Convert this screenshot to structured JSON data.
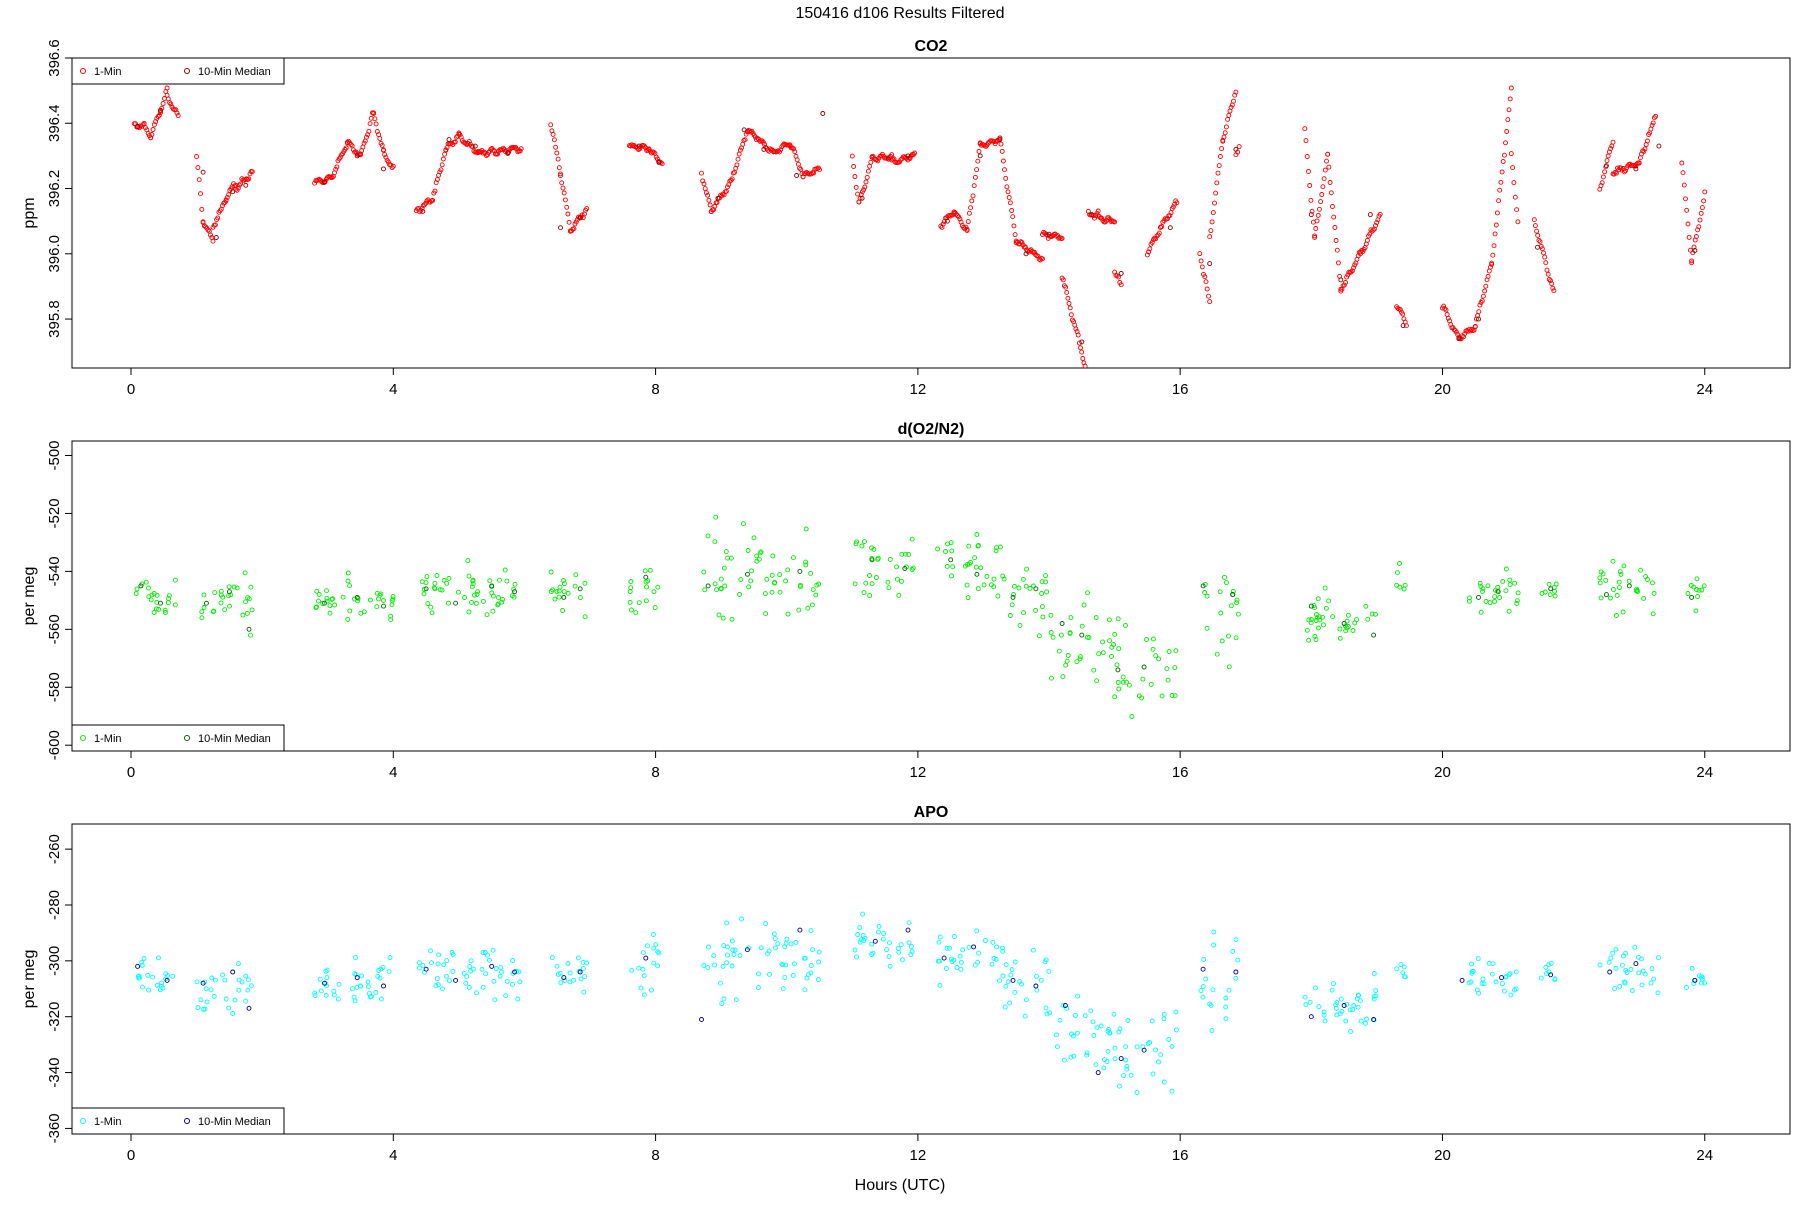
{
  "title": "150416   d106   Results Filtered",
  "xlabel": "Hours (UTC)",
  "chart_data": [
    {
      "type": "scatter",
      "title": "CO2",
      "ylabel": "ppm",
      "xlim": [
        -0.9,
        25.3
      ],
      "ylim": [
        395.65,
        396.6
      ],
      "xticks": [
        0,
        4,
        8,
        12,
        16,
        20,
        24
      ],
      "yticks": [
        395.8,
        396.0,
        396.2,
        396.4,
        396.6
      ],
      "ytick_labels": [
        "395.8",
        "396.0",
        "396.2",
        "396.4",
        "396.6"
      ],
      "legend": {
        "position": "top-left",
        "entries": [
          "1-Min",
          "10-Min Median"
        ]
      },
      "colors": {
        "one_min": "#ff0000",
        "median": "#8b0000"
      },
      "segments": [
        [
          0.05,
          0.2,
          396.39,
          396.39
        ],
        [
          0.2,
          0.3,
          396.39,
          396.36
        ],
        [
          0.3,
          0.45,
          396.36,
          396.44
        ],
        [
          0.45,
          0.55,
          396.44,
          396.5
        ],
        [
          0.55,
          0.72,
          396.48,
          396.42
        ],
        [
          1.0,
          1.1,
          396.3,
          396.1
        ],
        [
          1.1,
          1.25,
          396.1,
          396.04
        ],
        [
          1.25,
          1.45,
          396.08,
          396.17
        ],
        [
          1.45,
          1.6,
          396.17,
          396.22
        ],
        [
          1.6,
          1.85,
          396.2,
          396.25
        ],
        [
          2.8,
          3.05,
          396.22,
          396.23
        ],
        [
          3.05,
          3.3,
          396.23,
          396.34
        ],
        [
          3.3,
          3.5,
          396.34,
          396.3
        ],
        [
          3.5,
          3.7,
          396.3,
          396.43
        ],
        [
          3.7,
          3.85,
          396.43,
          396.31
        ],
        [
          3.85,
          4.0,
          396.31,
          396.26
        ],
        [
          4.35,
          4.6,
          396.13,
          396.17
        ],
        [
          4.6,
          4.8,
          396.17,
          396.32
        ],
        [
          4.8,
          5.0,
          396.32,
          396.36
        ],
        [
          5.0,
          5.3,
          396.36,
          396.31
        ],
        [
          5.3,
          5.95,
          396.31,
          396.32
        ],
        [
          6.4,
          6.55,
          396.4,
          396.25
        ],
        [
          6.55,
          6.7,
          396.25,
          396.07
        ],
        [
          6.7,
          6.95,
          396.07,
          396.14
        ],
        [
          7.6,
          7.9,
          396.33,
          396.32
        ],
        [
          7.9,
          8.1,
          396.32,
          396.28
        ],
        [
          8.7,
          8.85,
          396.25,
          396.13
        ],
        [
          8.85,
          9.15,
          396.13,
          396.22
        ],
        [
          9.15,
          9.4,
          396.22,
          396.38
        ],
        [
          9.4,
          9.8,
          396.38,
          396.31
        ],
        [
          9.8,
          10.05,
          396.31,
          396.34
        ],
        [
          10.05,
          10.25,
          396.34,
          396.24
        ],
        [
          10.25,
          10.5,
          396.24,
          396.26
        ],
        [
          11.0,
          11.1,
          396.3,
          396.15
        ],
        [
          11.1,
          11.3,
          396.15,
          396.29
        ],
        [
          11.3,
          11.6,
          396.29,
          396.3
        ],
        [
          11.6,
          11.95,
          396.28,
          396.3
        ],
        [
          12.35,
          12.55,
          396.09,
          396.13
        ],
        [
          12.55,
          12.75,
          396.13,
          396.07
        ],
        [
          12.75,
          12.95,
          396.07,
          396.33
        ],
        [
          12.95,
          13.25,
          396.33,
          396.35
        ],
        [
          13.25,
          13.5,
          396.35,
          396.04
        ],
        [
          13.5,
          13.9,
          396.04,
          395.98
        ],
        [
          13.9,
          14.2,
          396.06,
          396.05
        ],
        [
          14.2,
          14.55,
          395.93,
          395.66
        ],
        [
          14.6,
          14.75,
          396.12,
          396.12
        ],
        [
          14.75,
          15.0,
          396.11,
          396.1
        ],
        [
          15.0,
          15.1,
          395.95,
          395.9
        ],
        [
          15.5,
          15.7,
          396.0,
          396.08
        ],
        [
          15.7,
          15.95,
          396.08,
          396.16
        ],
        [
          16.3,
          16.45,
          396.0,
          395.85
        ],
        [
          16.45,
          16.65,
          396.05,
          396.35
        ],
        [
          16.65,
          16.85,
          396.35,
          396.5
        ],
        [
          16.85,
          16.9,
          396.31,
          396.32
        ],
        [
          17.9,
          18.05,
          396.38,
          396.05
        ],
        [
          18.05,
          18.25,
          396.05,
          396.3
        ],
        [
          18.25,
          18.45,
          396.3,
          395.89
        ],
        [
          18.45,
          18.75,
          395.89,
          396.0
        ],
        [
          18.75,
          19.05,
          396.0,
          396.12
        ],
        [
          19.3,
          19.45,
          395.85,
          395.78
        ],
        [
          20.0,
          20.25,
          395.84,
          395.74
        ],
        [
          20.25,
          20.5,
          395.74,
          395.78
        ],
        [
          20.5,
          20.75,
          395.78,
          395.97
        ],
        [
          20.75,
          21.05,
          395.97,
          396.5
        ],
        [
          21.05,
          21.15,
          396.3,
          396.1
        ],
        [
          21.4,
          21.7,
          396.1,
          395.88
        ],
        [
          22.4,
          22.6,
          396.2,
          396.35
        ],
        [
          22.6,
          23.0,
          396.25,
          396.28
        ],
        [
          23.0,
          23.25,
          396.28,
          396.42
        ],
        [
          23.65,
          23.8,
          396.28,
          395.98
        ],
        [
          23.8,
          24.0,
          395.98,
          396.18
        ]
      ],
      "median_points": [
        [
          0.1,
          396.39
        ],
        [
          0.45,
          396.44
        ],
        [
          1.1,
          396.25
        ],
        [
          1.3,
          396.05
        ],
        [
          1.55,
          396.19
        ],
        [
          1.75,
          396.21
        ],
        [
          2.95,
          396.22
        ],
        [
          3.45,
          396.3
        ],
        [
          3.85,
          396.26
        ],
        [
          4.45,
          396.13
        ],
        [
          4.85,
          396.35
        ],
        [
          5.25,
          396.33
        ],
        [
          5.75,
          396.31
        ],
        [
          6.55,
          396.08
        ],
        [
          6.85,
          396.11
        ],
        [
          7.75,
          396.33
        ],
        [
          8.05,
          396.28
        ],
        [
          8.95,
          396.17
        ],
        [
          9.35,
          396.38
        ],
        [
          9.65,
          396.32
        ],
        [
          10.15,
          396.24
        ],
        [
          10.55,
          396.43
        ],
        [
          11.15,
          396.17
        ],
        [
          11.55,
          396.29
        ],
        [
          11.85,
          396.3
        ],
        [
          12.45,
          396.1
        ],
        [
          12.95,
          396.3
        ],
        [
          13.25,
          396.35
        ],
        [
          13.65,
          396.0
        ],
        [
          14.0,
          396.06
        ],
        [
          14.5,
          395.73
        ],
        [
          14.65,
          396.12
        ],
        [
          15.1,
          395.94
        ],
        [
          15.85,
          396.08
        ],
        [
          16.45,
          395.97
        ],
        [
          16.85,
          396.32
        ],
        [
          18.0,
          396.12
        ],
        [
          18.45,
          395.92
        ],
        [
          18.9,
          396.12
        ],
        [
          19.4,
          395.78
        ],
        [
          20.25,
          395.74
        ],
        [
          20.55,
          395.8
        ],
        [
          21.45,
          396.02
        ],
        [
          22.5,
          396.27
        ],
        [
          22.95,
          396.26
        ],
        [
          23.3,
          396.33
        ],
        [
          23.85,
          396.01
        ]
      ]
    },
    {
      "type": "scatter",
      "title": "d(O2/N2)",
      "ylabel": "per meg",
      "xlim": [
        -0.9,
        25.3
      ],
      "ylim": [
        -602,
        -495
      ],
      "xticks": [
        0,
        4,
        8,
        12,
        16,
        20,
        24
      ],
      "yticks": [
        -600,
        -580,
        -560,
        -540,
        -520,
        -500
      ],
      "ytick_labels": [
        "-600",
        "-580",
        "-560",
        "-540",
        "-520",
        "-500"
      ],
      "legend": {
        "position": "bottom-left",
        "entries": [
          "1-Min",
          "10-Min Median"
        ]
      },
      "colors": {
        "one_min": "#00ee00",
        "median": "#006400"
      },
      "clusters": [
        [
          0.05,
          0.7,
          -550,
          5
        ],
        [
          1.0,
          1.85,
          -551,
          6
        ],
        [
          2.8,
          4.0,
          -550,
          6
        ],
        [
          4.35,
          5.95,
          -547,
          6
        ],
        [
          6.4,
          6.95,
          -547,
          5
        ],
        [
          7.6,
          8.1,
          -546,
          8
        ],
        [
          8.7,
          10.5,
          -542,
          10
        ],
        [
          11.0,
          11.95,
          -538,
          8
        ],
        [
          12.3,
          13.3,
          -538,
          8
        ],
        [
          13.3,
          14.0,
          -548,
          9
        ],
        [
          14.0,
          15.0,
          -565,
          10
        ],
        [
          15.0,
          15.95,
          -574,
          12
        ],
        [
          16.3,
          16.9,
          -553,
          13
        ],
        [
          17.9,
          19.05,
          -557,
          7
        ],
        [
          19.3,
          19.45,
          -543,
          4
        ],
        [
          20.4,
          21.2,
          -548,
          5
        ],
        [
          21.5,
          21.75,
          -547,
          3
        ],
        [
          22.4,
          23.3,
          -546,
          7
        ],
        [
          23.7,
          24.0,
          -547,
          5
        ]
      ],
      "median_points": [
        [
          0.15,
          -545
        ],
        [
          0.45,
          -551
        ],
        [
          1.15,
          -551
        ],
        [
          1.5,
          -547
        ],
        [
          1.8,
          -560
        ],
        [
          2.95,
          -551
        ],
        [
          3.45,
          -549
        ],
        [
          3.85,
          -552
        ],
        [
          4.5,
          -546
        ],
        [
          4.95,
          -551
        ],
        [
          5.5,
          -545
        ],
        [
          5.85,
          -547
        ],
        [
          6.6,
          -549
        ],
        [
          6.85,
          -546
        ],
        [
          7.85,
          -542
        ],
        [
          8.8,
          -545
        ],
        [
          9.4,
          -541
        ],
        [
          10.2,
          -540
        ],
        [
          11.3,
          -536
        ],
        [
          11.8,
          -539
        ],
        [
          12.5,
          -536
        ],
        [
          12.9,
          -541
        ],
        [
          13.45,
          -549
        ],
        [
          13.8,
          -546
        ],
        [
          14.2,
          -558
        ],
        [
          14.5,
          -562
        ],
        [
          15.05,
          -574
        ],
        [
          15.45,
          -573
        ],
        [
          16.35,
          -545
        ],
        [
          16.8,
          -548
        ],
        [
          18.0,
          -552
        ],
        [
          18.5,
          -558
        ],
        [
          18.95,
          -562
        ],
        [
          20.55,
          -549
        ],
        [
          20.85,
          -547
        ],
        [
          21.65,
          -546
        ],
        [
          22.5,
          -548
        ],
        [
          22.85,
          -545
        ],
        [
          23.8,
          -549
        ]
      ]
    },
    {
      "type": "scatter",
      "title": "APO",
      "ylabel": "per meg",
      "xlim": [
        -0.9,
        25.3
      ],
      "ylim": [
        -362,
        -251
      ],
      "xticks": [
        0,
        4,
        8,
        12,
        16,
        20,
        24
      ],
      "yticks": [
        -360,
        -340,
        -320,
        -300,
        -280,
        -260
      ],
      "ytick_labels": [
        "-360",
        "-340",
        "-320",
        "-300",
        "-280",
        "-260"
      ],
      "legend": {
        "position": "bottom-left",
        "entries": [
          "1-Min",
          "10-Min Median"
        ]
      },
      "colors": {
        "one_min": "#00ffff",
        "median": "#00008b"
      },
      "clusters": [
        [
          0.05,
          0.7,
          -305,
          5
        ],
        [
          1.0,
          1.85,
          -311,
          6
        ],
        [
          2.8,
          4.0,
          -307,
          6
        ],
        [
          4.35,
          5.95,
          -304,
          6
        ],
        [
          6.4,
          6.95,
          -305,
          5
        ],
        [
          7.6,
          8.1,
          -303,
          8
        ],
        [
          8.7,
          10.5,
          -299,
          10
        ],
        [
          11.0,
          11.95,
          -294,
          6
        ],
        [
          12.3,
          13.3,
          -296,
          8
        ],
        [
          13.3,
          14.0,
          -306,
          9
        ],
        [
          14.0,
          15.0,
          -324,
          10
        ],
        [
          15.0,
          15.95,
          -333,
          12
        ],
        [
          16.3,
          16.9,
          -310,
          13
        ],
        [
          17.9,
          19.05,
          -316,
          7
        ],
        [
          19.3,
          19.45,
          -303,
          4
        ],
        [
          20.4,
          21.2,
          -306,
          5
        ],
        [
          21.5,
          21.75,
          -305,
          3
        ],
        [
          22.4,
          23.3,
          -304,
          7
        ],
        [
          23.7,
          24.0,
          -306,
          5
        ]
      ],
      "median_points": [
        [
          0.1,
          -302
        ],
        [
          0.55,
          -307
        ],
        [
          1.1,
          -308
        ],
        [
          1.55,
          -304
        ],
        [
          1.8,
          -317
        ],
        [
          2.95,
          -308
        ],
        [
          3.45,
          -306
        ],
        [
          3.85,
          -309
        ],
        [
          4.5,
          -303
        ],
        [
          4.95,
          -307
        ],
        [
          5.5,
          -302
        ],
        [
          5.85,
          -304
        ],
        [
          6.6,
          -306
        ],
        [
          6.85,
          -304
        ],
        [
          7.85,
          -299
        ],
        [
          8.7,
          -321
        ],
        [
          9.4,
          -296
        ],
        [
          10.2,
          -289
        ],
        [
          11.35,
          -293
        ],
        [
          11.85,
          -289
        ],
        [
          12.4,
          -299
        ],
        [
          12.85,
          -295
        ],
        [
          13.45,
          -307
        ],
        [
          13.8,
          -309
        ],
        [
          14.25,
          -316
        ],
        [
          14.75,
          -340
        ],
        [
          15.1,
          -335
        ],
        [
          15.45,
          -332
        ],
        [
          16.35,
          -303
        ],
        [
          16.85,
          -304
        ],
        [
          18.0,
          -320
        ],
        [
          18.5,
          -316
        ],
        [
          18.95,
          -321
        ],
        [
          20.3,
          -307
        ],
        [
          20.9,
          -306
        ],
        [
          21.65,
          -305
        ],
        [
          22.55,
          -304
        ],
        [
          22.95,
          -301
        ],
        [
          23.85,
          -307
        ]
      ]
    }
  ]
}
